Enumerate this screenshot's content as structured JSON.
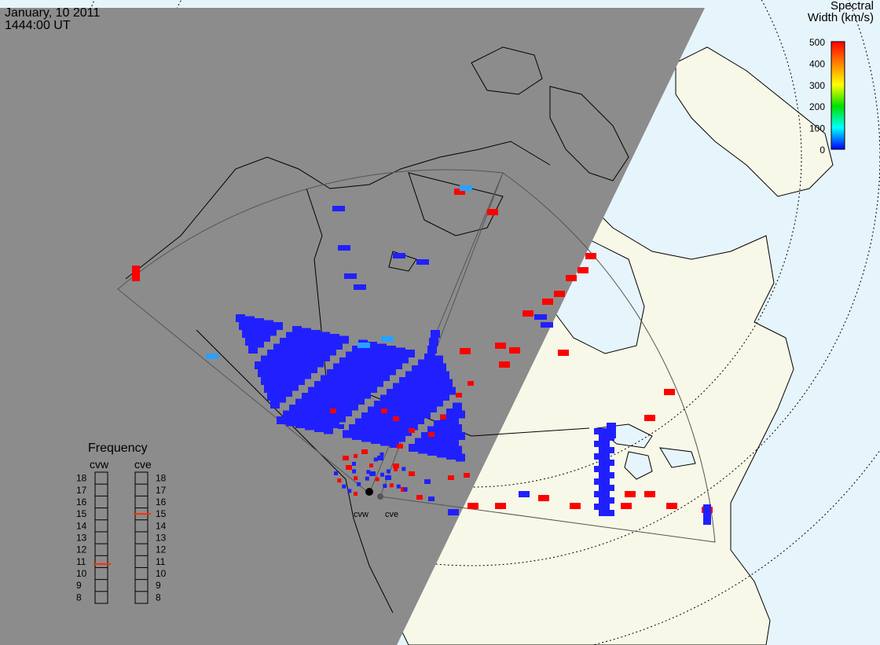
{
  "header": {
    "date": "January, 10 2011",
    "time": "1444:00 UT"
  },
  "colorbar": {
    "title_line1": "Spectral",
    "title_line2": "Width (km/s)",
    "ticks": [
      "500",
      "400",
      "300",
      "200",
      "100",
      "0"
    ],
    "colors": [
      "#ff0000",
      "#ff8000",
      "#ffff00",
      "#00e000",
      "#00ffff",
      "#0000ff"
    ]
  },
  "frequency": {
    "title": "Frequency",
    "radars": [
      {
        "code": "cvw",
        "value": 10.8
      },
      {
        "code": "cve",
        "value": 15
      }
    ],
    "scale": [
      "18",
      "17",
      "16",
      "15",
      "14",
      "13",
      "12",
      "11",
      "10",
      "9",
      "8"
    ]
  },
  "stations": [
    {
      "code": "cvw"
    },
    {
      "code": "cve"
    }
  ],
  "colors": {
    "night": "#8c8c8c",
    "land": "#f8f8e8",
    "ocean": "#e6f4fb",
    "high_width": "#ff0000",
    "low_width": "#2020ff",
    "mid_width": "#2aa0ff"
  }
}
